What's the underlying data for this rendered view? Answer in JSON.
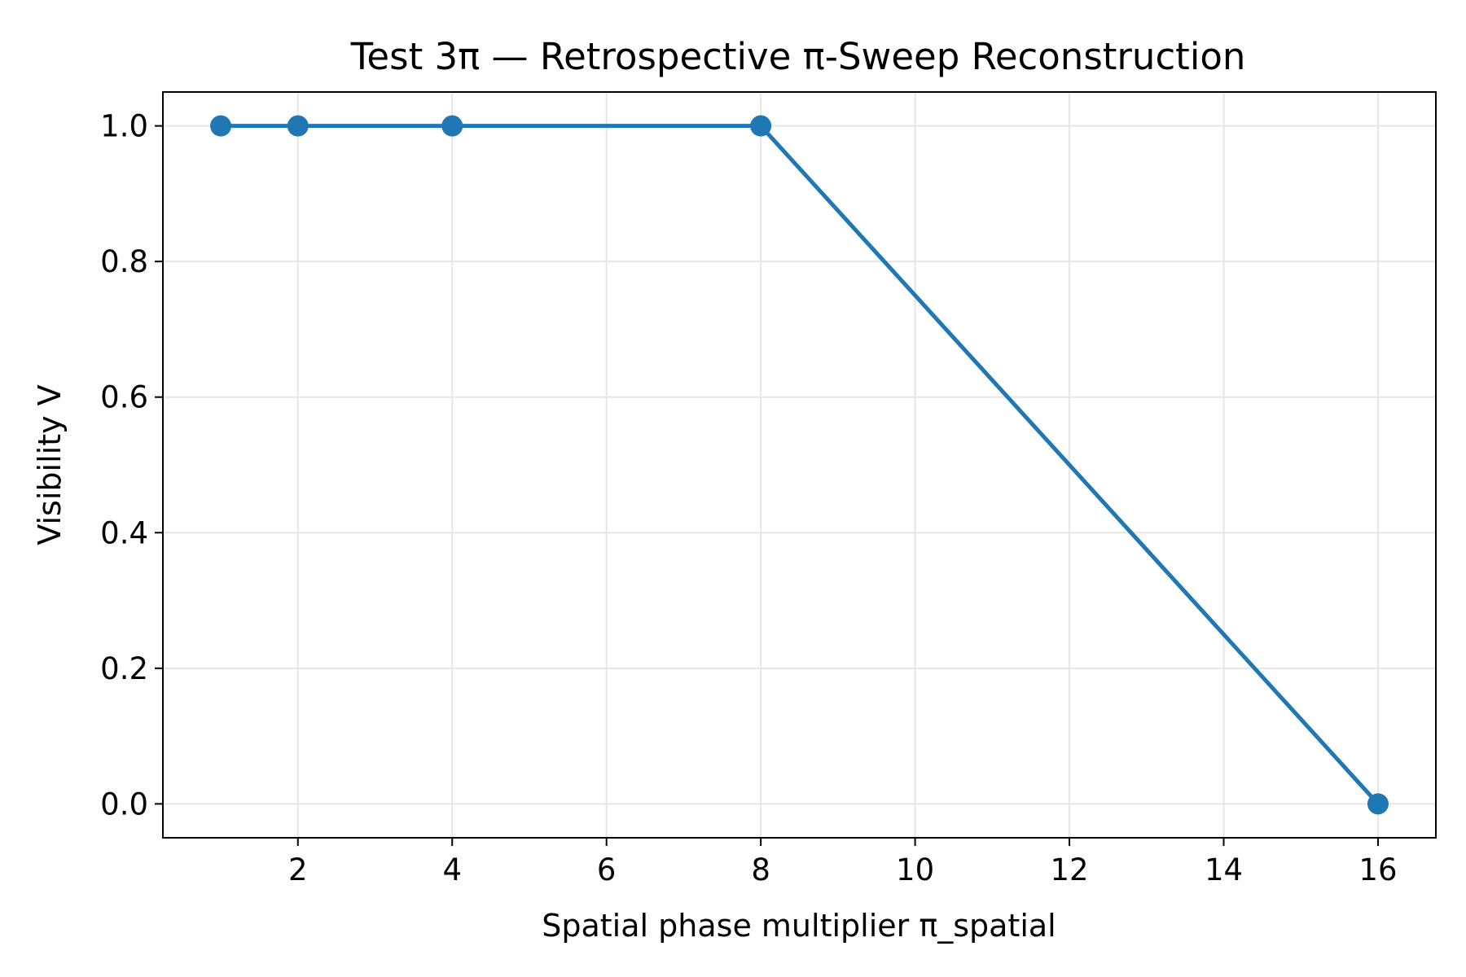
{
  "chart_data": {
    "type": "line",
    "title": "Test 3π — Retrospective π-Sweep Reconstruction",
    "xlabel": "Spatial phase multiplier π_spatial",
    "ylabel": "Visibility V",
    "xlim": [
      0.25,
      16.75
    ],
    "ylim": [
      -0.05,
      1.05
    ],
    "xticks": [
      2,
      4,
      6,
      8,
      10,
      12,
      14,
      16
    ],
    "yticks": [
      0.0,
      0.2,
      0.4,
      0.6,
      0.8,
      1.0
    ],
    "xtick_labels": [
      "2",
      "4",
      "6",
      "8",
      "10",
      "12",
      "14",
      "16"
    ],
    "ytick_labels": [
      "0.0",
      "0.2",
      "0.4",
      "0.6",
      "0.8",
      "1.0"
    ],
    "grid": true,
    "series": [
      {
        "color": "#1f77b4",
        "marker": "circle",
        "x": [
          1,
          2,
          4,
          8,
          16
        ],
        "y": [
          1.0,
          1.0,
          1.0,
          1.0,
          0.0
        ]
      }
    ]
  }
}
